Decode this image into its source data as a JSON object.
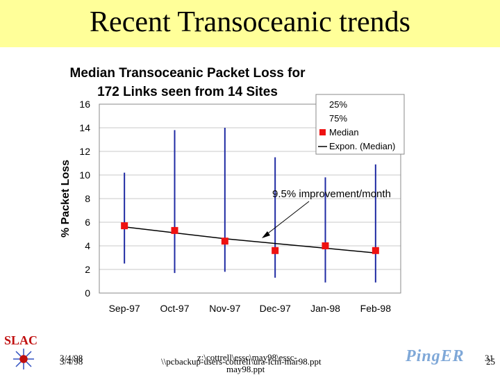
{
  "slide": {
    "title": "Recent Transoceanic trends"
  },
  "chart_data": {
    "type": "line",
    "title_line1": "Median Transoceanic Packet Loss for",
    "title_line2": "172 Links seen from 14 Sites",
    "xlabel": "",
    "ylabel": "% Packet Loss",
    "categories": [
      "Sep-97",
      "Oct-97",
      "Nov-97",
      "Dec-97",
      "Jan-98",
      "Feb-98"
    ],
    "ylim": [
      0,
      16
    ],
    "yticks": [
      0,
      2,
      4,
      6,
      8,
      10,
      12,
      14,
      16
    ],
    "grid": true,
    "legend_position": "top-right",
    "legend": [
      "25%",
      "75%",
      "Median",
      "Expon. (Median)"
    ],
    "series": [
      {
        "name": "25%",
        "values": [
          2.5,
          1.7,
          1.8,
          1.3,
          0.9,
          0.9
        ]
      },
      {
        "name": "75%",
        "values": [
          10.2,
          13.8,
          14.0,
          11.5,
          9.8,
          10.9
        ]
      },
      {
        "name": "Median",
        "values": [
          5.7,
          5.3,
          4.4,
          3.6,
          4.0,
          3.6
        ]
      },
      {
        "name": "Expon. (Median)",
        "values": [
          5.6,
          5.1,
          4.6,
          4.2,
          3.8,
          3.4
        ]
      }
    ],
    "annotation": "9.5% improvement/month",
    "colors": {
      "range": "#1f2aa3",
      "median": "#ee1111",
      "trend": "#000000",
      "grid": "#c8c8c8"
    }
  },
  "footer": {
    "date_a": "3/4/98",
    "date_b": "3/4/98",
    "path_a": "z:\\cottrell\\essc\\may98\\essc-",
    "path_a2": "may98.ppt",
    "path_b": "\\\\pcbackup-users-cottrell\\ura-lcm-mar98.ppt",
    "page_a": "31",
    "page_b": "25"
  },
  "logos": {
    "slac": "SLAC",
    "pinger": "PingER"
  }
}
